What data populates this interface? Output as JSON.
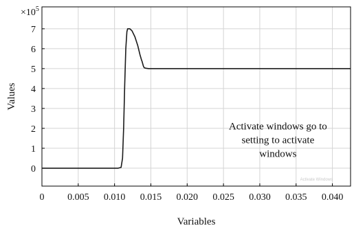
{
  "chart_data": {
    "type": "line",
    "title": "",
    "xlabel": "Variables",
    "ylabel": "Values",
    "y_multiplier": "×10",
    "y_multiplier_exp": "5",
    "xlim": [
      0,
      0.0425
    ],
    "ylim": [
      -0.9,
      8.1
    ],
    "grid": true,
    "x_ticks": [
      0,
      0.005,
      0.01,
      0.015,
      0.02,
      0.025,
      0.03,
      0.035,
      0.04
    ],
    "x_tick_labels": [
      "0",
      "0.005",
      "0.010",
      "0.015",
      "0.020",
      "0.025",
      "0.030",
      "0.035",
      "0.040"
    ],
    "y_ticks": [
      0,
      1,
      2,
      3,
      4,
      5,
      6,
      7
    ],
    "y_tick_labels": [
      "0",
      "1",
      "2",
      "3",
      "4",
      "5",
      "6",
      "7"
    ],
    "series": [
      {
        "color": "#1a1a1a",
        "x": [
          0,
          0.0105,
          0.0109,
          0.0111,
          0.01125,
          0.0114,
          0.01155,
          0.0117,
          0.0118,
          0.0121,
          0.0124,
          0.0128,
          0.0132,
          0.0135,
          0.0137,
          0.0138,
          0.01385,
          0.0139,
          0.01395,
          0.014,
          0.0141,
          0.0143,
          0.0147,
          0.0425
        ],
        "y": [
          0,
          0,
          0.04,
          0.5,
          2.0,
          4.2,
          6.0,
          6.85,
          7.0,
          7.0,
          6.9,
          6.6,
          6.15,
          5.7,
          5.45,
          5.35,
          5.28,
          5.22,
          5.15,
          5.1,
          5.04,
          5.02,
          5.0,
          5.0
        ]
      }
    ],
    "annotations": [
      {
        "text_lines": [
          "Activate windows go to",
          "setting to activate",
          "windows"
        ],
        "x": 0.0325,
        "y": 1.95
      },
      {
        "text_lines": [
          "Activate Windows"
        ],
        "x": 0.0378,
        "y": -0.62
      }
    ]
  }
}
